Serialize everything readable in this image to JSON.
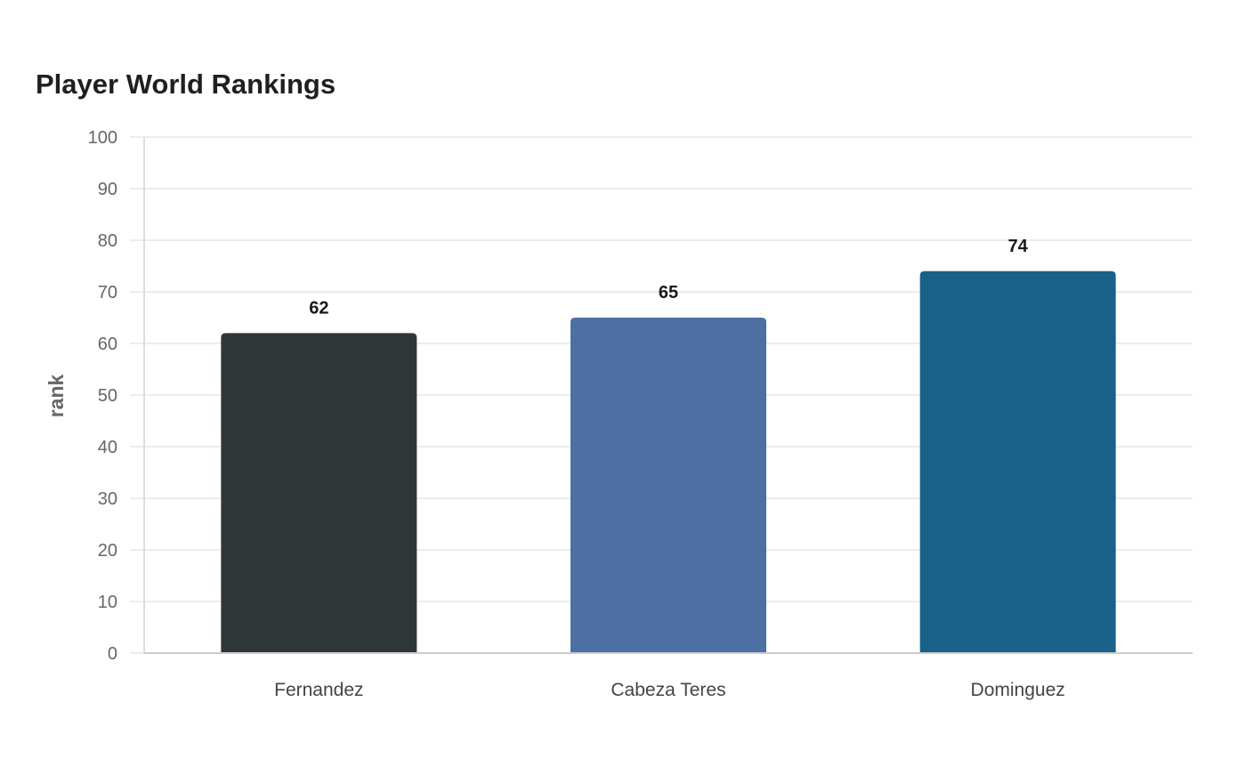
{
  "chart_data": {
    "type": "bar",
    "title": "Player World Rankings",
    "xlabel": "",
    "ylabel": "rank",
    "categories": [
      "Fernandez",
      "Cabeza Teres",
      "Dominguez"
    ],
    "values": [
      62,
      65,
      74
    ],
    "colors": [
      "#2e3638",
      "#4d6fa4",
      "#186188"
    ],
    "ylim": [
      0,
      100
    ],
    "yticks": [
      0,
      10,
      20,
      30,
      40,
      50,
      60,
      70,
      80,
      90,
      100
    ],
    "grid": true,
    "data_labels": true
  }
}
